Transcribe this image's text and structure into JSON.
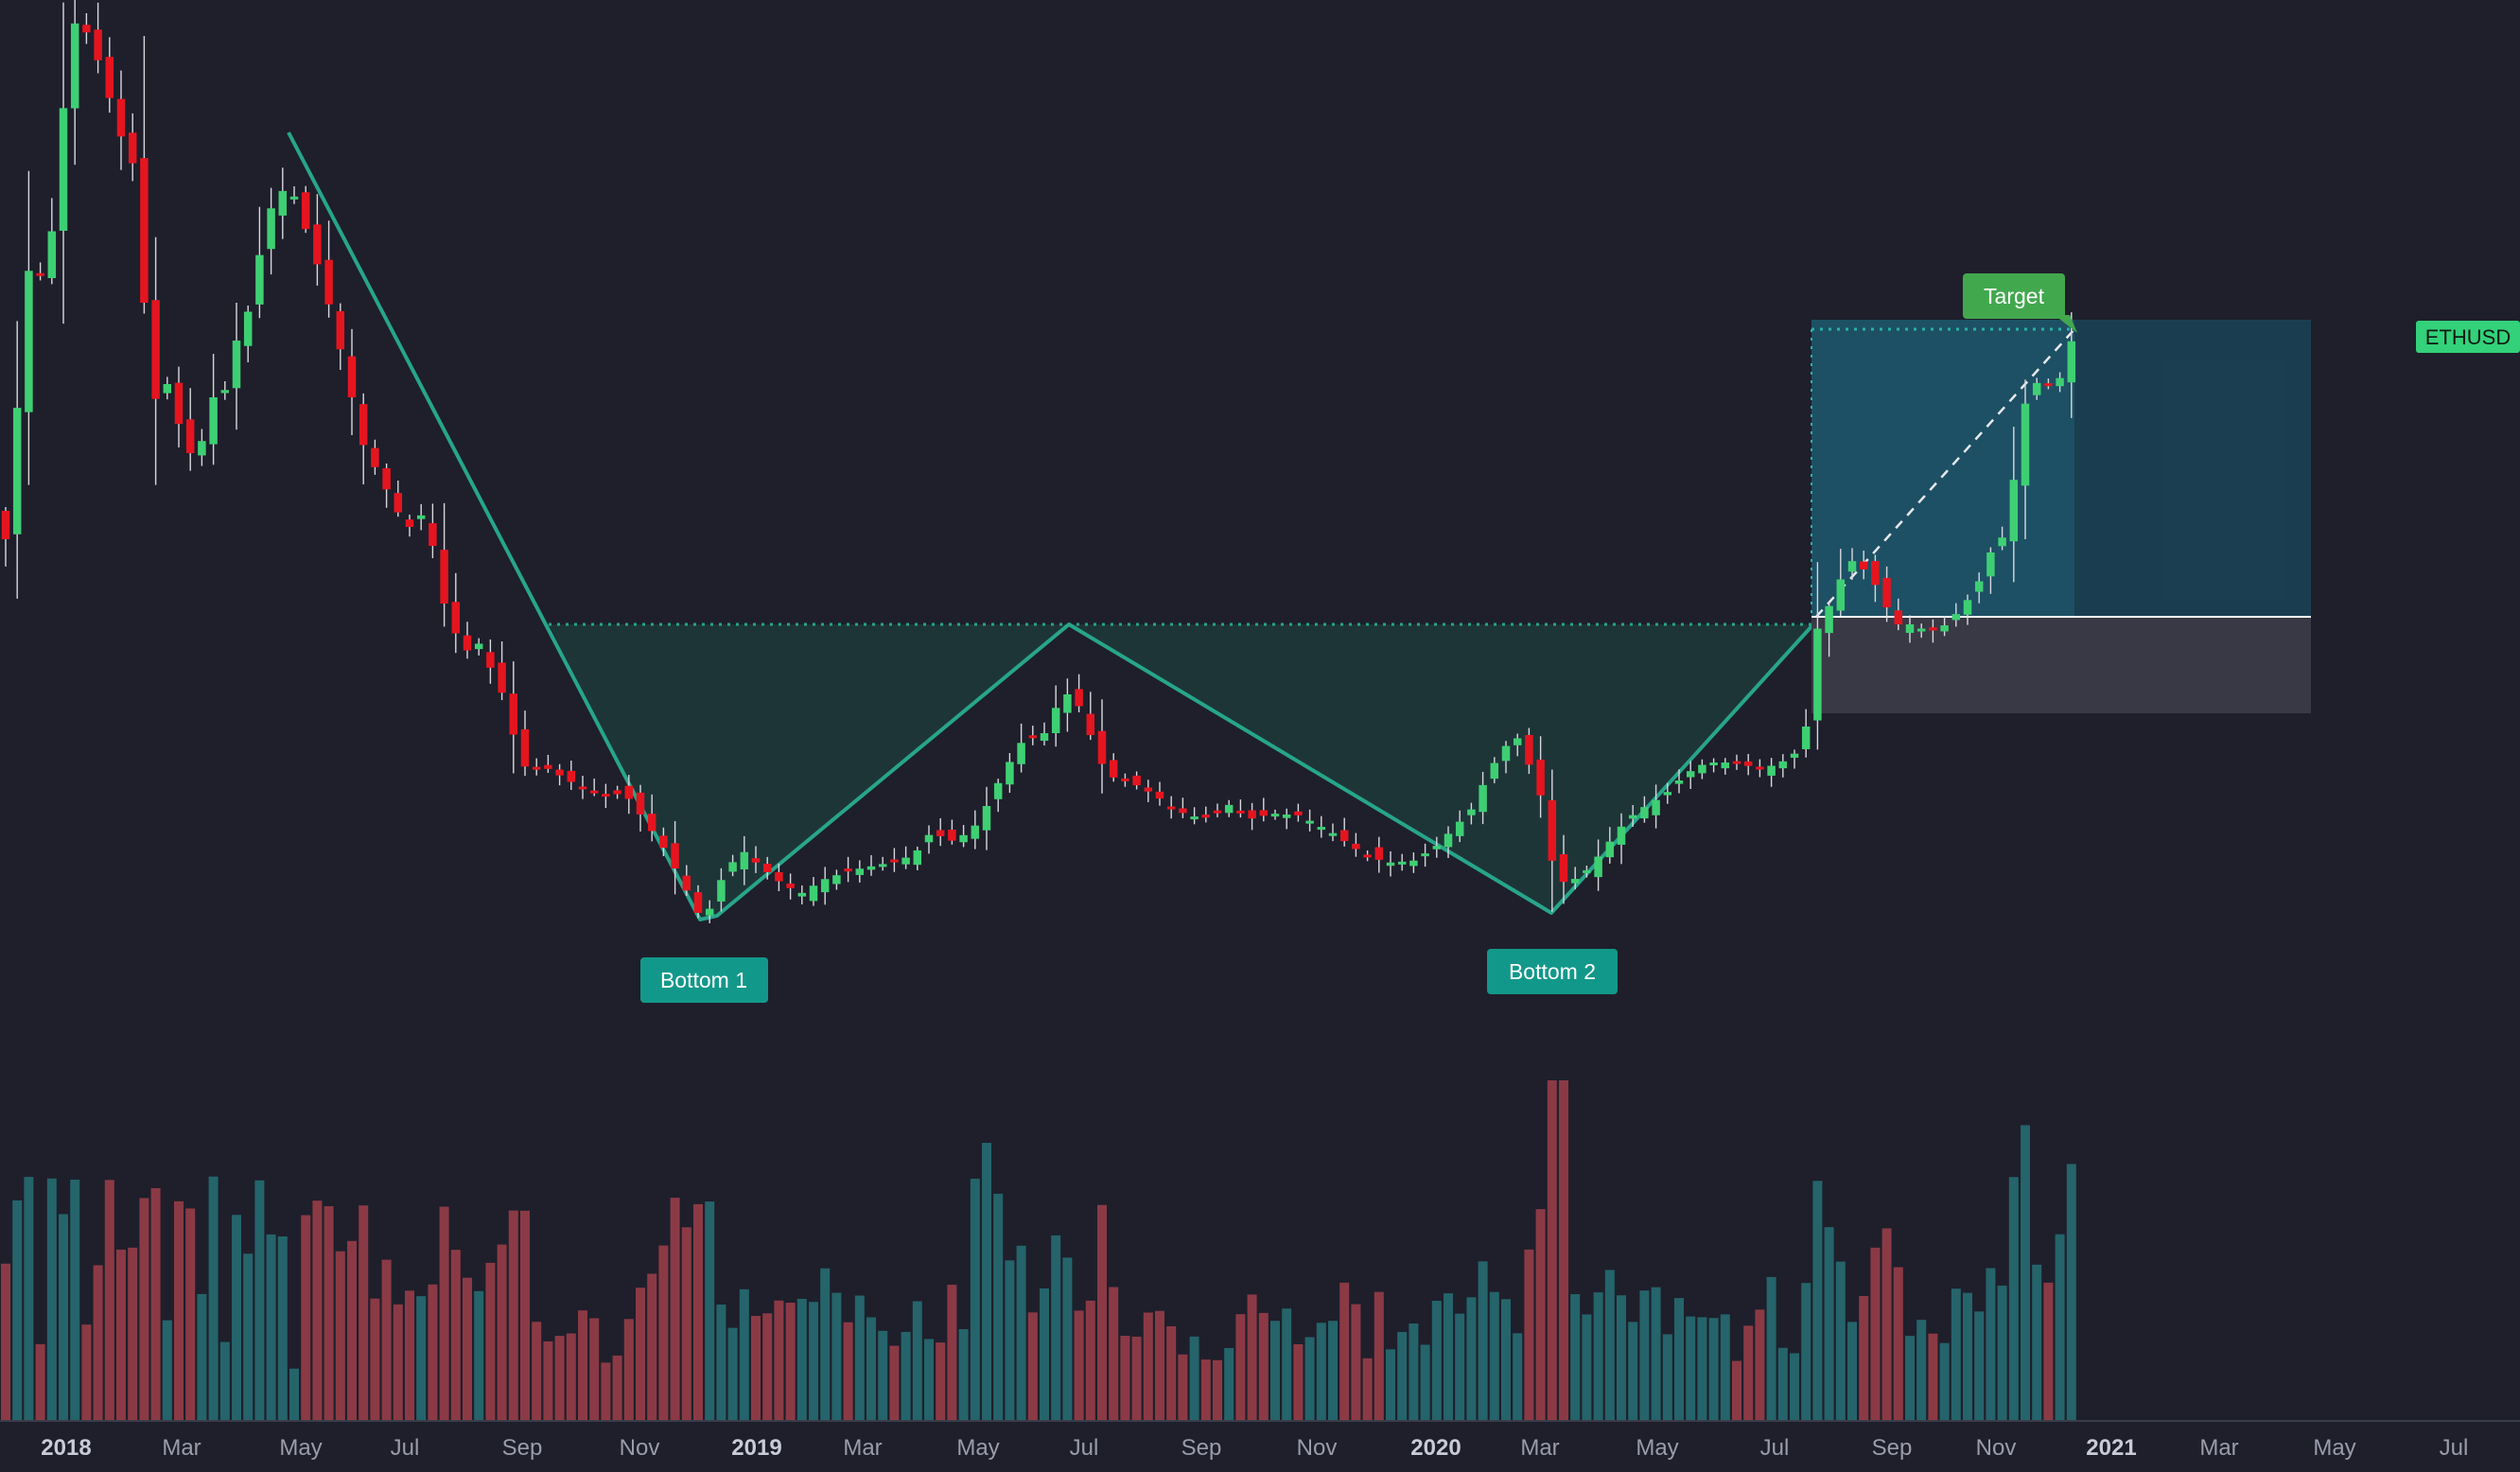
{
  "chart_data": {
    "type": "candlestick",
    "symbol": "ETHUSD",
    "pattern_labels": {
      "bottom1": "Bottom 1",
      "bottom2": "Bottom 2",
      "target": "Target"
    },
    "x_axis": {
      "ticks": [
        {
          "label": "2018",
          "year": true
        },
        {
          "label": "Mar",
          "year": false
        },
        {
          "label": "May",
          "year": false
        },
        {
          "label": "Jul",
          "year": false
        },
        {
          "label": "Sep",
          "year": false
        },
        {
          "label": "Nov",
          "year": false
        },
        {
          "label": "2019",
          "year": true
        },
        {
          "label": "Mar",
          "year": false
        },
        {
          "label": "May",
          "year": false
        },
        {
          "label": "Jul",
          "year": false
        },
        {
          "label": "Sep",
          "year": false
        },
        {
          "label": "Nov",
          "year": false
        },
        {
          "label": "2020",
          "year": true
        },
        {
          "label": "Mar",
          "year": false
        },
        {
          "label": "May",
          "year": false
        },
        {
          "label": "Jul",
          "year": false
        },
        {
          "label": "Sep",
          "year": false
        },
        {
          "label": "Nov",
          "year": false
        },
        {
          "label": "2021",
          "year": true
        },
        {
          "label": "Mar",
          "year": false
        },
        {
          "label": "May",
          "year": false
        },
        {
          "label": "Jul",
          "year": false
        }
      ]
    },
    "y_scale": "log",
    "ylim": [
      70,
      1600
    ],
    "series_approx_weekly_close": [
      {
        "period": "2018-01",
        "value": 1200
      },
      {
        "period": "2018-05",
        "value": 720
      },
      {
        "period": "2018-09",
        "value": 215
      },
      {
        "period": "2018-12",
        "value": 85
      },
      {
        "period": "2019-06",
        "value": 305
      },
      {
        "period": "2019-12",
        "value": 130
      },
      {
        "period": "2020-03",
        "value": 110
      },
      {
        "period": "2020-07",
        "value": 330
      },
      {
        "period": "2020-12",
        "value": 615
      }
    ],
    "colors": {
      "background": "#1e1f2b",
      "up": "#3ecf73",
      "down": "#e5151f",
      "pattern_line": "#27a58a",
      "pattern_fill": "#1f3a3b",
      "label_bg": "#12988a",
      "target_bg": "#42a84e",
      "target_box": "#1a4a5e",
      "stop_box": "#3b3b47",
      "volume_up": "#25646b",
      "volume_down": "#8b3a45",
      "price_tag": "#33d17a"
    }
  }
}
